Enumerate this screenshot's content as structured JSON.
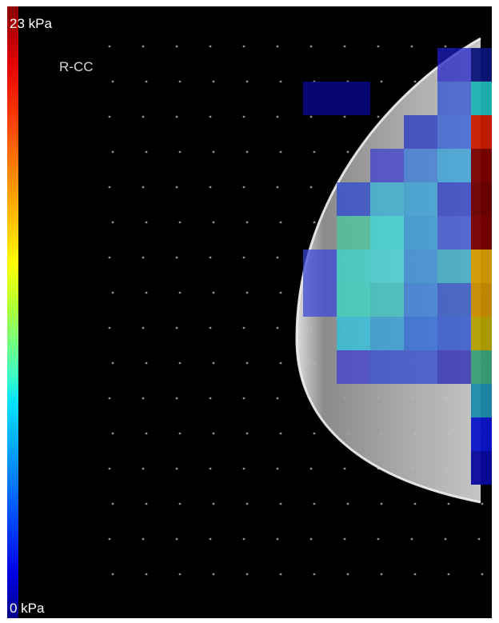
{
  "colorbar": {
    "max_label": "23 kPa",
    "min_label": "0 kPa",
    "max_value": 23,
    "min_value": 0,
    "unit": "kPa",
    "colormap": "jet"
  },
  "view_label": "R-CC",
  "colors": {
    "background": "#000000",
    "tissue": "#cfcfcf",
    "sensor_dot": "#8a8a8a"
  }
}
